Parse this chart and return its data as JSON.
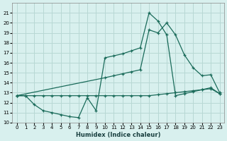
{
  "xlabel": "Humidex (Indice chaleur)",
  "bg_color": "#d8f0ee",
  "grid_color": "#b8d8d4",
  "line_color": "#1a6b5a",
  "xlim": [
    -0.5,
    23.5
  ],
  "ylim": [
    10,
    22
  ],
  "xticks": [
    0,
    1,
    2,
    3,
    4,
    5,
    6,
    7,
    8,
    9,
    10,
    11,
    12,
    13,
    14,
    15,
    16,
    17,
    18,
    19,
    20,
    21,
    22,
    23
  ],
  "yticks": [
    10,
    11,
    12,
    13,
    14,
    15,
    16,
    17,
    18,
    19,
    20,
    21
  ],
  "line1_x": [
    0,
    1,
    2,
    3,
    4,
    5,
    6,
    7,
    8,
    9,
    10,
    11,
    12,
    13,
    14,
    15,
    16,
    17,
    18,
    19,
    20,
    21,
    22,
    23
  ],
  "line1_y": [
    12.7,
    12.7,
    11.8,
    11.2,
    11.0,
    10.8,
    10.6,
    10.5,
    12.5,
    11.2,
    16.5,
    16.7,
    16.9,
    17.2,
    17.5,
    21.0,
    20.2,
    18.8,
    12.7,
    12.9,
    13.1,
    13.3,
    13.5,
    12.9
  ],
  "line2_x": [
    0,
    10,
    11,
    12,
    13,
    14,
    15,
    16,
    17,
    18,
    19,
    20,
    21,
    22,
    23
  ],
  "line2_y": [
    12.7,
    14.5,
    14.7,
    14.9,
    15.1,
    15.3,
    19.3,
    19.0,
    20.0,
    18.8,
    16.8,
    15.5,
    14.7,
    14.8,
    13.0
  ],
  "line3_x": [
    0,
    1,
    2,
    3,
    4,
    5,
    6,
    7,
    8,
    9,
    10,
    11,
    12,
    13,
    14,
    15,
    16,
    17,
    18,
    19,
    20,
    21,
    22,
    23
  ],
  "line3_y": [
    12.7,
    12.7,
    12.7,
    12.7,
    12.7,
    12.7,
    12.7,
    12.7,
    12.7,
    12.7,
    12.7,
    12.7,
    12.7,
    12.7,
    12.7,
    12.7,
    12.8,
    12.9,
    13.0,
    13.1,
    13.2,
    13.3,
    13.4,
    12.9
  ]
}
